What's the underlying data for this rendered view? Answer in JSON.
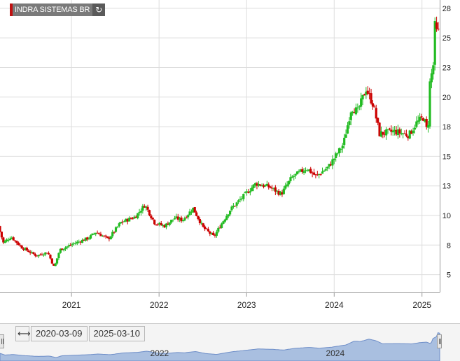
{
  "legend": {
    "label": "INDRA SISTEMAS BR",
    "refresh_icon": "refresh-icon",
    "swatch_color": "#c01010"
  },
  "range": {
    "from": "2020-03-09",
    "to": "2025-03-10",
    "arrows_icon": "horizontal-arrows-icon"
  },
  "navigator": {
    "year_labels": [
      "2022",
      "2024"
    ],
    "fill_color": "#a9bfe0",
    "line_color": "#6e8ec8"
  },
  "chart_data": {
    "type": "candlestick",
    "interval": "weekly",
    "x_axis": {
      "tick_labels": [
        "2021",
        "2022",
        "2023",
        "2024",
        "2025"
      ]
    },
    "y_axis": {
      "tick_labels": [
        "5",
        "8",
        "10",
        "13",
        "15",
        "18",
        "20",
        "23",
        "25",
        "28"
      ],
      "position": "right",
      "range": [
        3.5,
        28.2
      ]
    },
    "grid": true,
    "up_color": "#22bb22",
    "down_color": "#cc0000",
    "anchors": [
      [
        "2020-03-09",
        9.1
      ],
      [
        "2020-03-30",
        7.7
      ],
      [
        "2020-05-01",
        8.2
      ],
      [
        "2020-06-15",
        7.3
      ],
      [
        "2020-08-15",
        6.6
      ],
      [
        "2020-10-01",
        6.9
      ],
      [
        "2020-10-28",
        5.6
      ],
      [
        "2020-11-20",
        7.1
      ],
      [
        "2021-01-15",
        7.6
      ],
      [
        "2021-03-20",
        8.1
      ],
      [
        "2021-04-20",
        8.6
      ],
      [
        "2021-06-10",
        8.0
      ],
      [
        "2021-08-01",
        9.4
      ],
      [
        "2021-10-01",
        9.9
      ],
      [
        "2021-11-10",
        10.9
      ],
      [
        "2021-12-20",
        9.4
      ],
      [
        "2022-01-30",
        9.1
      ],
      [
        "2022-03-15",
        9.8
      ],
      [
        "2022-04-15",
        9.6
      ],
      [
        "2022-05-30",
        10.6
      ],
      [
        "2022-07-10",
        9.0
      ],
      [
        "2022-08-25",
        8.2
      ],
      [
        "2022-09-25",
        9.3
      ],
      [
        "2022-11-01",
        10.5
      ],
      [
        "2022-12-15",
        11.4
      ],
      [
        "2023-02-15",
        12.7
      ],
      [
        "2023-04-15",
        12.4
      ],
      [
        "2023-06-01",
        11.8
      ],
      [
        "2023-07-15",
        13.2
      ],
      [
        "2023-09-15",
        14.0
      ],
      [
        "2023-10-25",
        13.3
      ],
      [
        "2023-12-15",
        14.1
      ],
      [
        "2024-02-15",
        16.0
      ],
      [
        "2024-03-20",
        19.1
      ],
      [
        "2024-04-15",
        18.8
      ],
      [
        "2024-05-20",
        20.7
      ],
      [
        "2024-06-20",
        19.3
      ],
      [
        "2024-07-15",
        16.9
      ],
      [
        "2024-09-15",
        17.1
      ],
      [
        "2024-11-15",
        16.8
      ],
      [
        "2024-12-15",
        17.8
      ],
      [
        "2025-01-15",
        18.3
      ],
      [
        "2025-02-01",
        16.9
      ],
      [
        "2025-02-10",
        21.2
      ],
      [
        "2025-02-24",
        22.7
      ],
      [
        "2025-03-03",
        26.0
      ],
      [
        "2025-03-10",
        25.5
      ]
    ]
  }
}
